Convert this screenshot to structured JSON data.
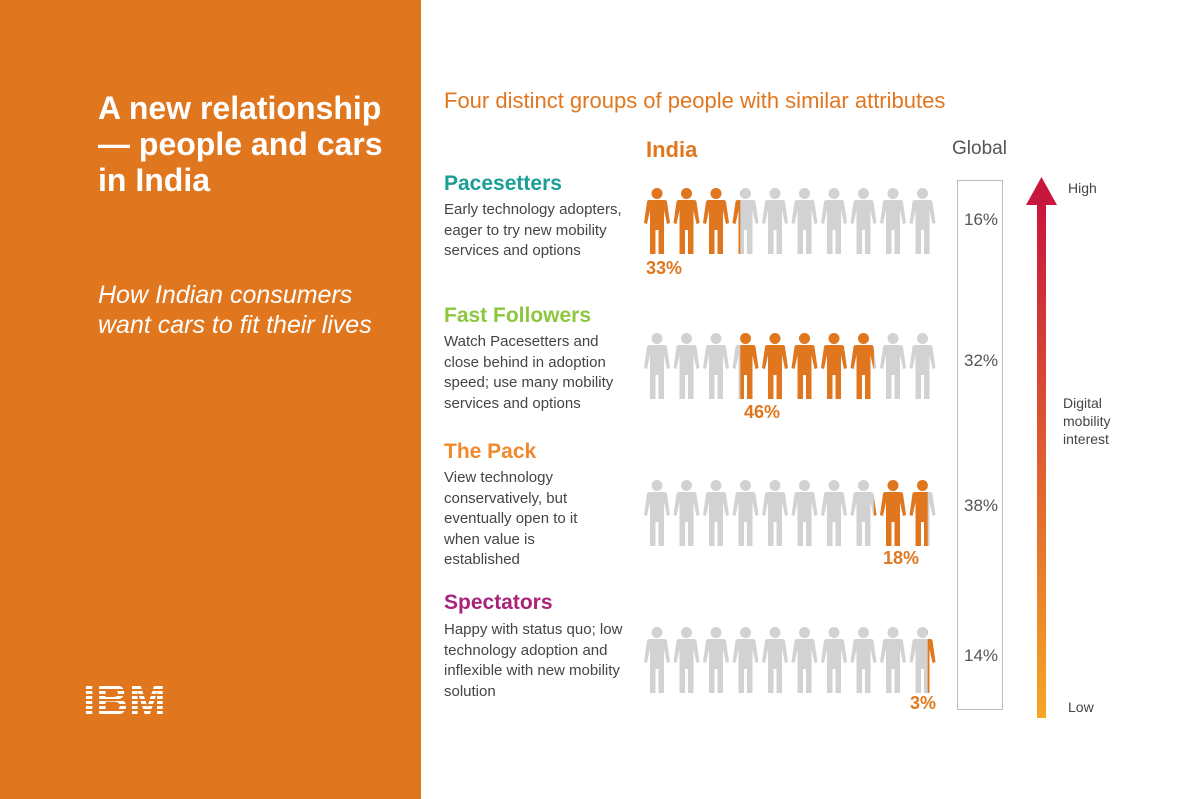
{
  "left_panel": {
    "title": "A new relationship — people and cars in India",
    "subtitle": "How Indian consumers want cars to fit their lives",
    "logo": "IBM"
  },
  "colors": {
    "accent": "#e0771f",
    "panel_bg": "#e0771f",
    "icon_gray": "#d2d2d2",
    "pacesetters": "#1a9e96",
    "fast_followers": "#8dc63f",
    "the_pack": "#f0892b",
    "spectators": "#a8237a",
    "arrow_top": "#c8173d",
    "arrow_bottom": "#f6a623"
  },
  "chart_data": {
    "type": "pictograph",
    "title": "Four distinct groups of people with similar attributes",
    "columns": [
      "India",
      "Global"
    ],
    "icons_per_row": 10,
    "segments": [
      {
        "name": "Pacesetters",
        "description": "Early technology adopters, eager to try new mobility services and options",
        "india": 33,
        "india_label": "33%",
        "global": 16,
        "global_label": "16%",
        "filled_start": 0,
        "filled_end": 3.3
      },
      {
        "name": "Fast Followers",
        "description": "Watch Pacesetters and close behind in adoption speed; use many mobility services and options",
        "india": 46,
        "india_label": "46%",
        "global": 32,
        "global_label": "32%",
        "filled_start": 3.3,
        "filled_end": 7.9
      },
      {
        "name": "The Pack",
        "description": "View technology conservatively, but eventually open to it when value is established",
        "india": 18,
        "india_label": "18%",
        "global": 38,
        "global_label": "38%",
        "filled_start": 7.9,
        "filled_end": 9.7
      },
      {
        "name": "Spectators",
        "description": "Happy with status quo; low technology adoption and inflexible with new mobility solution",
        "india": 3,
        "india_label": "3%",
        "global": 14,
        "global_label": "14%",
        "filled_start": 9.7,
        "filled_end": 10
      }
    ],
    "axis": {
      "high_label": "High",
      "low_label": "Low",
      "label": "Digital mobility interest"
    }
  }
}
